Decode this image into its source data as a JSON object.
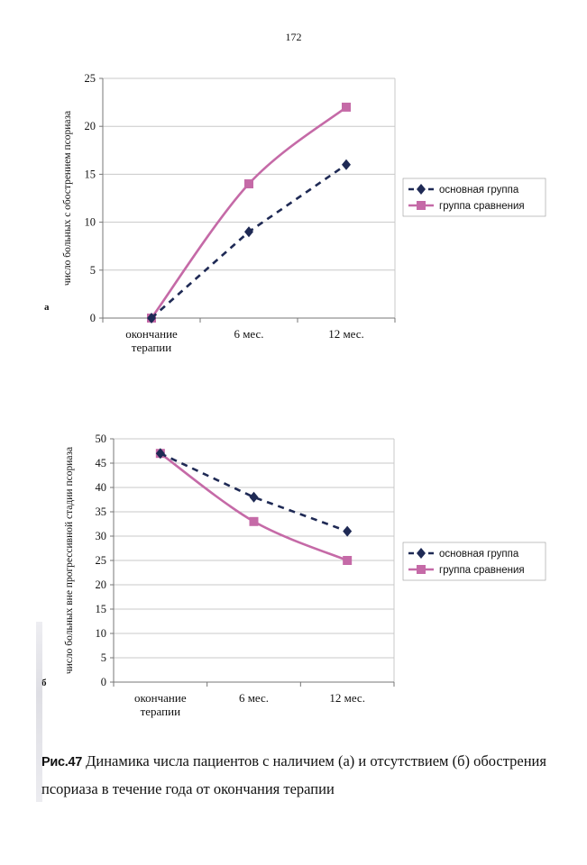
{
  "page_number": "172",
  "colors": {
    "series_main": "#1f2a55",
    "series_comparison": "#c56aa7",
    "grid": "#c8c8c8",
    "axis": "#777777"
  },
  "caption": {
    "prefix": "Рис.47",
    "text": " Динамика числа пациентов с наличием (а) и отсутствием (б) обострения псориаза в течение года от окончания терапии"
  },
  "chart_data": [
    {
      "type": "line",
      "panel_label": "а",
      "categories": [
        "окончание терапии",
        "6 мес.",
        "12 мес."
      ],
      "category_lines": [
        [
          "окончание",
          "терапии"
        ],
        [
          "6 мес."
        ],
        [
          "12 мес."
        ]
      ],
      "series": [
        {
          "name": "основная группа",
          "values": [
            0,
            9,
            16
          ],
          "style": "dashed",
          "marker": "diamond",
          "color": "#1f2a55"
        },
        {
          "name": "группа сравнения",
          "values": [
            0,
            14,
            22
          ],
          "style": "solid",
          "marker": "square",
          "color": "#c56aa7"
        }
      ],
      "ylabel": "число больных с обострением псориаза",
      "ylim": [
        0,
        25
      ],
      "yticks": [
        0,
        5,
        10,
        15,
        20,
        25
      ],
      "grid": true,
      "legend_position": "right"
    },
    {
      "type": "line",
      "panel_label": "б",
      "categories": [
        "окончание терапии",
        "6 мес.",
        "12 мес."
      ],
      "category_lines": [
        [
          "окончание",
          "терапии"
        ],
        [
          "6 мес."
        ],
        [
          "12 мес."
        ]
      ],
      "series": [
        {
          "name": "основная группа",
          "values": [
            47,
            38,
            31
          ],
          "style": "dashed",
          "marker": "diamond",
          "color": "#1f2a55"
        },
        {
          "name": "группа сравнения",
          "values": [
            47,
            33,
            25
          ],
          "style": "solid",
          "marker": "square",
          "color": "#c56aa7"
        }
      ],
      "ylabel": "число больных вне прогрессивной стадии псориаза",
      "ylim": [
        0,
        50
      ],
      "yticks": [
        0,
        5,
        10,
        15,
        20,
        25,
        30,
        35,
        40,
        45,
        50
      ],
      "grid": true,
      "legend_position": "right"
    }
  ]
}
